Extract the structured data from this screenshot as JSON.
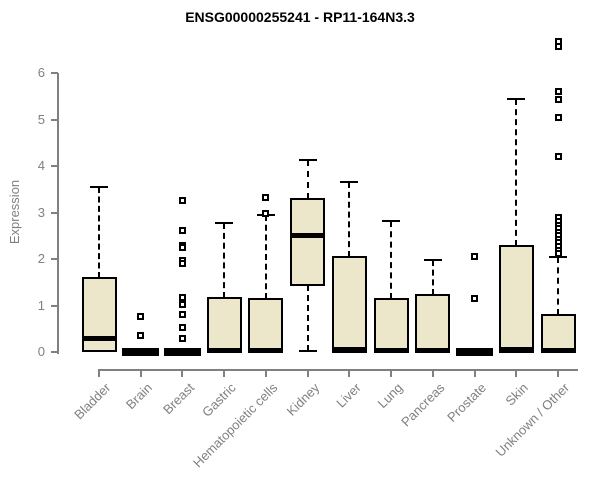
{
  "title": "ENSG00000255241 - RP11-164N3.3",
  "chart_data": {
    "type": "box",
    "title": "ENSG00000255241 - RP11-164N3.3",
    "xlabel": "",
    "ylabel": "Expression",
    "ylim": [
      0,
      6.8
    ],
    "yticks": [
      0,
      1,
      2,
      3,
      4,
      5,
      6
    ],
    "grid": false,
    "legend": null,
    "categories": [
      "Bladder",
      "Brain",
      "Breast",
      "Gastric",
      "Hematopoietic cells",
      "Kidney",
      "Liver",
      "Lung",
      "Pancreas",
      "Prostate",
      "Skin",
      "Unknown / Other"
    ],
    "series": [
      {
        "category": "Bladder",
        "min": 0,
        "q1": 0.02,
        "median": 0.28,
        "q3": 1.6,
        "max": 3.55,
        "outliers": []
      },
      {
        "category": "Brain",
        "min": 0,
        "q1": 0,
        "median": 0.02,
        "q3": 0.04,
        "max": 0.04,
        "outliers": [
          0.77,
          0.35
        ]
      },
      {
        "category": "Breast",
        "min": 0,
        "q1": 0,
        "median": 0.02,
        "q3": 0.04,
        "max": 0.04,
        "outliers": [
          3.25,
          2.62,
          2.3,
          2.24,
          1.97,
          1.9,
          1.17,
          1.03,
          0.8,
          0.53,
          0.28
        ]
      },
      {
        "category": "Gastric",
        "min": 0,
        "q1": 0,
        "median": 0.04,
        "q3": 1.17,
        "max": 2.77,
        "outliers": []
      },
      {
        "category": "Hematopoietic cells",
        "min": 0,
        "q1": 0,
        "median": 0.04,
        "q3": 1.14,
        "max": 2.95,
        "outliers": [
          3.32,
          2.97
        ]
      },
      {
        "category": "Kidney",
        "min": 0.02,
        "q1": 1.44,
        "median": 2.5,
        "q3": 3.3,
        "max": 4.13,
        "outliers": []
      },
      {
        "category": "Liver",
        "min": 0,
        "q1": 0,
        "median": 0.05,
        "q3": 2.05,
        "max": 3.66,
        "outliers": []
      },
      {
        "category": "Lung",
        "min": 0,
        "q1": 0,
        "median": 0.04,
        "q3": 1.14,
        "max": 2.82,
        "outliers": []
      },
      {
        "category": "Pancreas",
        "min": 0,
        "q1": 0,
        "median": 0.04,
        "q3": 1.22,
        "max": 1.98,
        "outliers": []
      },
      {
        "category": "Prostate",
        "min": 0,
        "q1": 0,
        "median": 0.02,
        "q3": 0.04,
        "max": 0.04,
        "outliers": [
          2.05,
          1.15
        ]
      },
      {
        "category": "Skin",
        "min": 0,
        "q1": 0,
        "median": 0.05,
        "q3": 2.27,
        "max": 5.45,
        "outliers": []
      },
      {
        "category": "Unknown / Other",
        "min": 0,
        "q1": 0,
        "median": 0.04,
        "q3": 0.8,
        "max": 2.05,
        "outliers": [
          6.67,
          6.56,
          5.6,
          5.44,
          5.04,
          4.2,
          2.89,
          2.81,
          2.73,
          2.66,
          2.58,
          2.5,
          2.43,
          2.35,
          2.27,
          2.19,
          2.11
        ]
      }
    ],
    "colors": {
      "box_fill": "#ECE7CB",
      "box_border": "#000000",
      "median": "#000000",
      "whisker": "#000000",
      "outlier_border": "#000000",
      "axis": "#808080",
      "tick_text": "#808080",
      "title_text": "#000000",
      "background": "#FFFFFF"
    }
  }
}
